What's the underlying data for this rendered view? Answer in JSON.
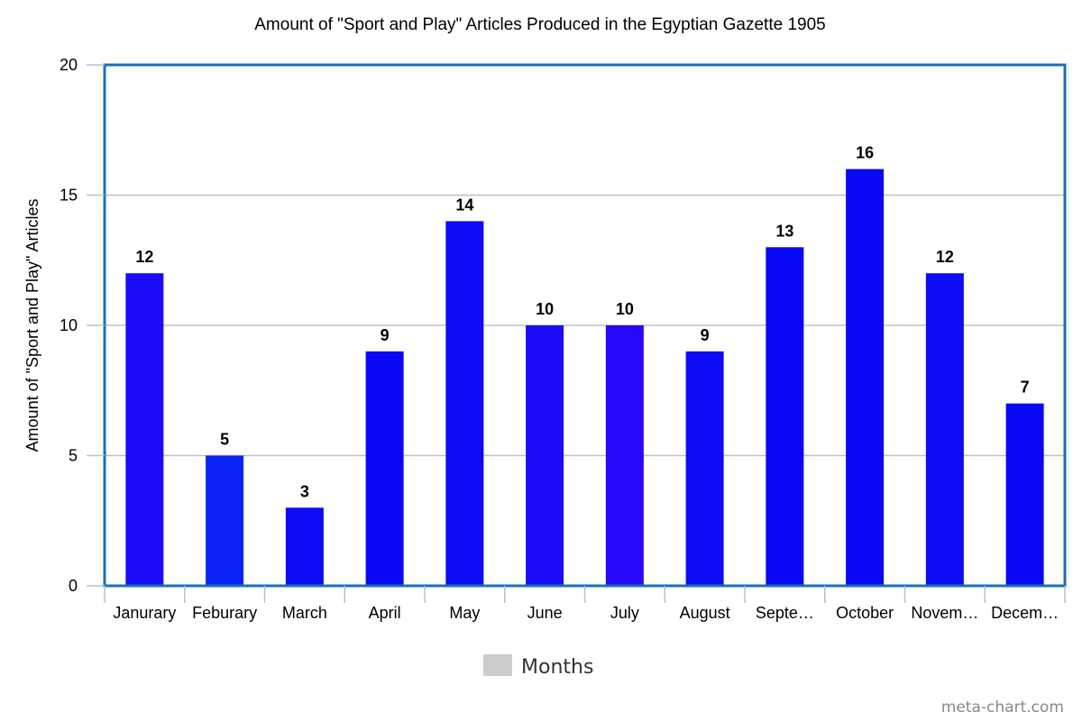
{
  "chart_data": {
    "type": "bar",
    "title": "Amount of \"Sport and Play\" Articles Produced in the Egyptian Gazette 1905",
    "xlabel": "",
    "ylabel": "Amount of \"Sport and Play\" Articles",
    "ylim": [
      0,
      20
    ],
    "yticks": [
      0,
      5,
      10,
      15,
      20
    ],
    "grid": true,
    "categories": [
      "Janurary",
      "Feburary",
      "March",
      "April",
      "May",
      "June",
      "July",
      "August",
      "Septe…",
      "October",
      "Novem…",
      "Decem…"
    ],
    "values": [
      12,
      5,
      3,
      9,
      14,
      10,
      10,
      9,
      13,
      16,
      12,
      7
    ],
    "bar_colors": [
      "#1a0cf5",
      "#0a24f5",
      "#0c0cf5",
      "#0808f5",
      "#0c0cf5",
      "#1a0cf5",
      "#2808f8",
      "#0c0cf5",
      "#0808f5",
      "#0808f5",
      "#0c0cf5",
      "#0808f5"
    ],
    "legend": {
      "label": "Months",
      "swatch_color": "#cccccc",
      "position": "bottom"
    },
    "frame_color": "#1a70b8",
    "grid_color": "#c0c0c0"
  },
  "watermark": "meta-chart.com"
}
